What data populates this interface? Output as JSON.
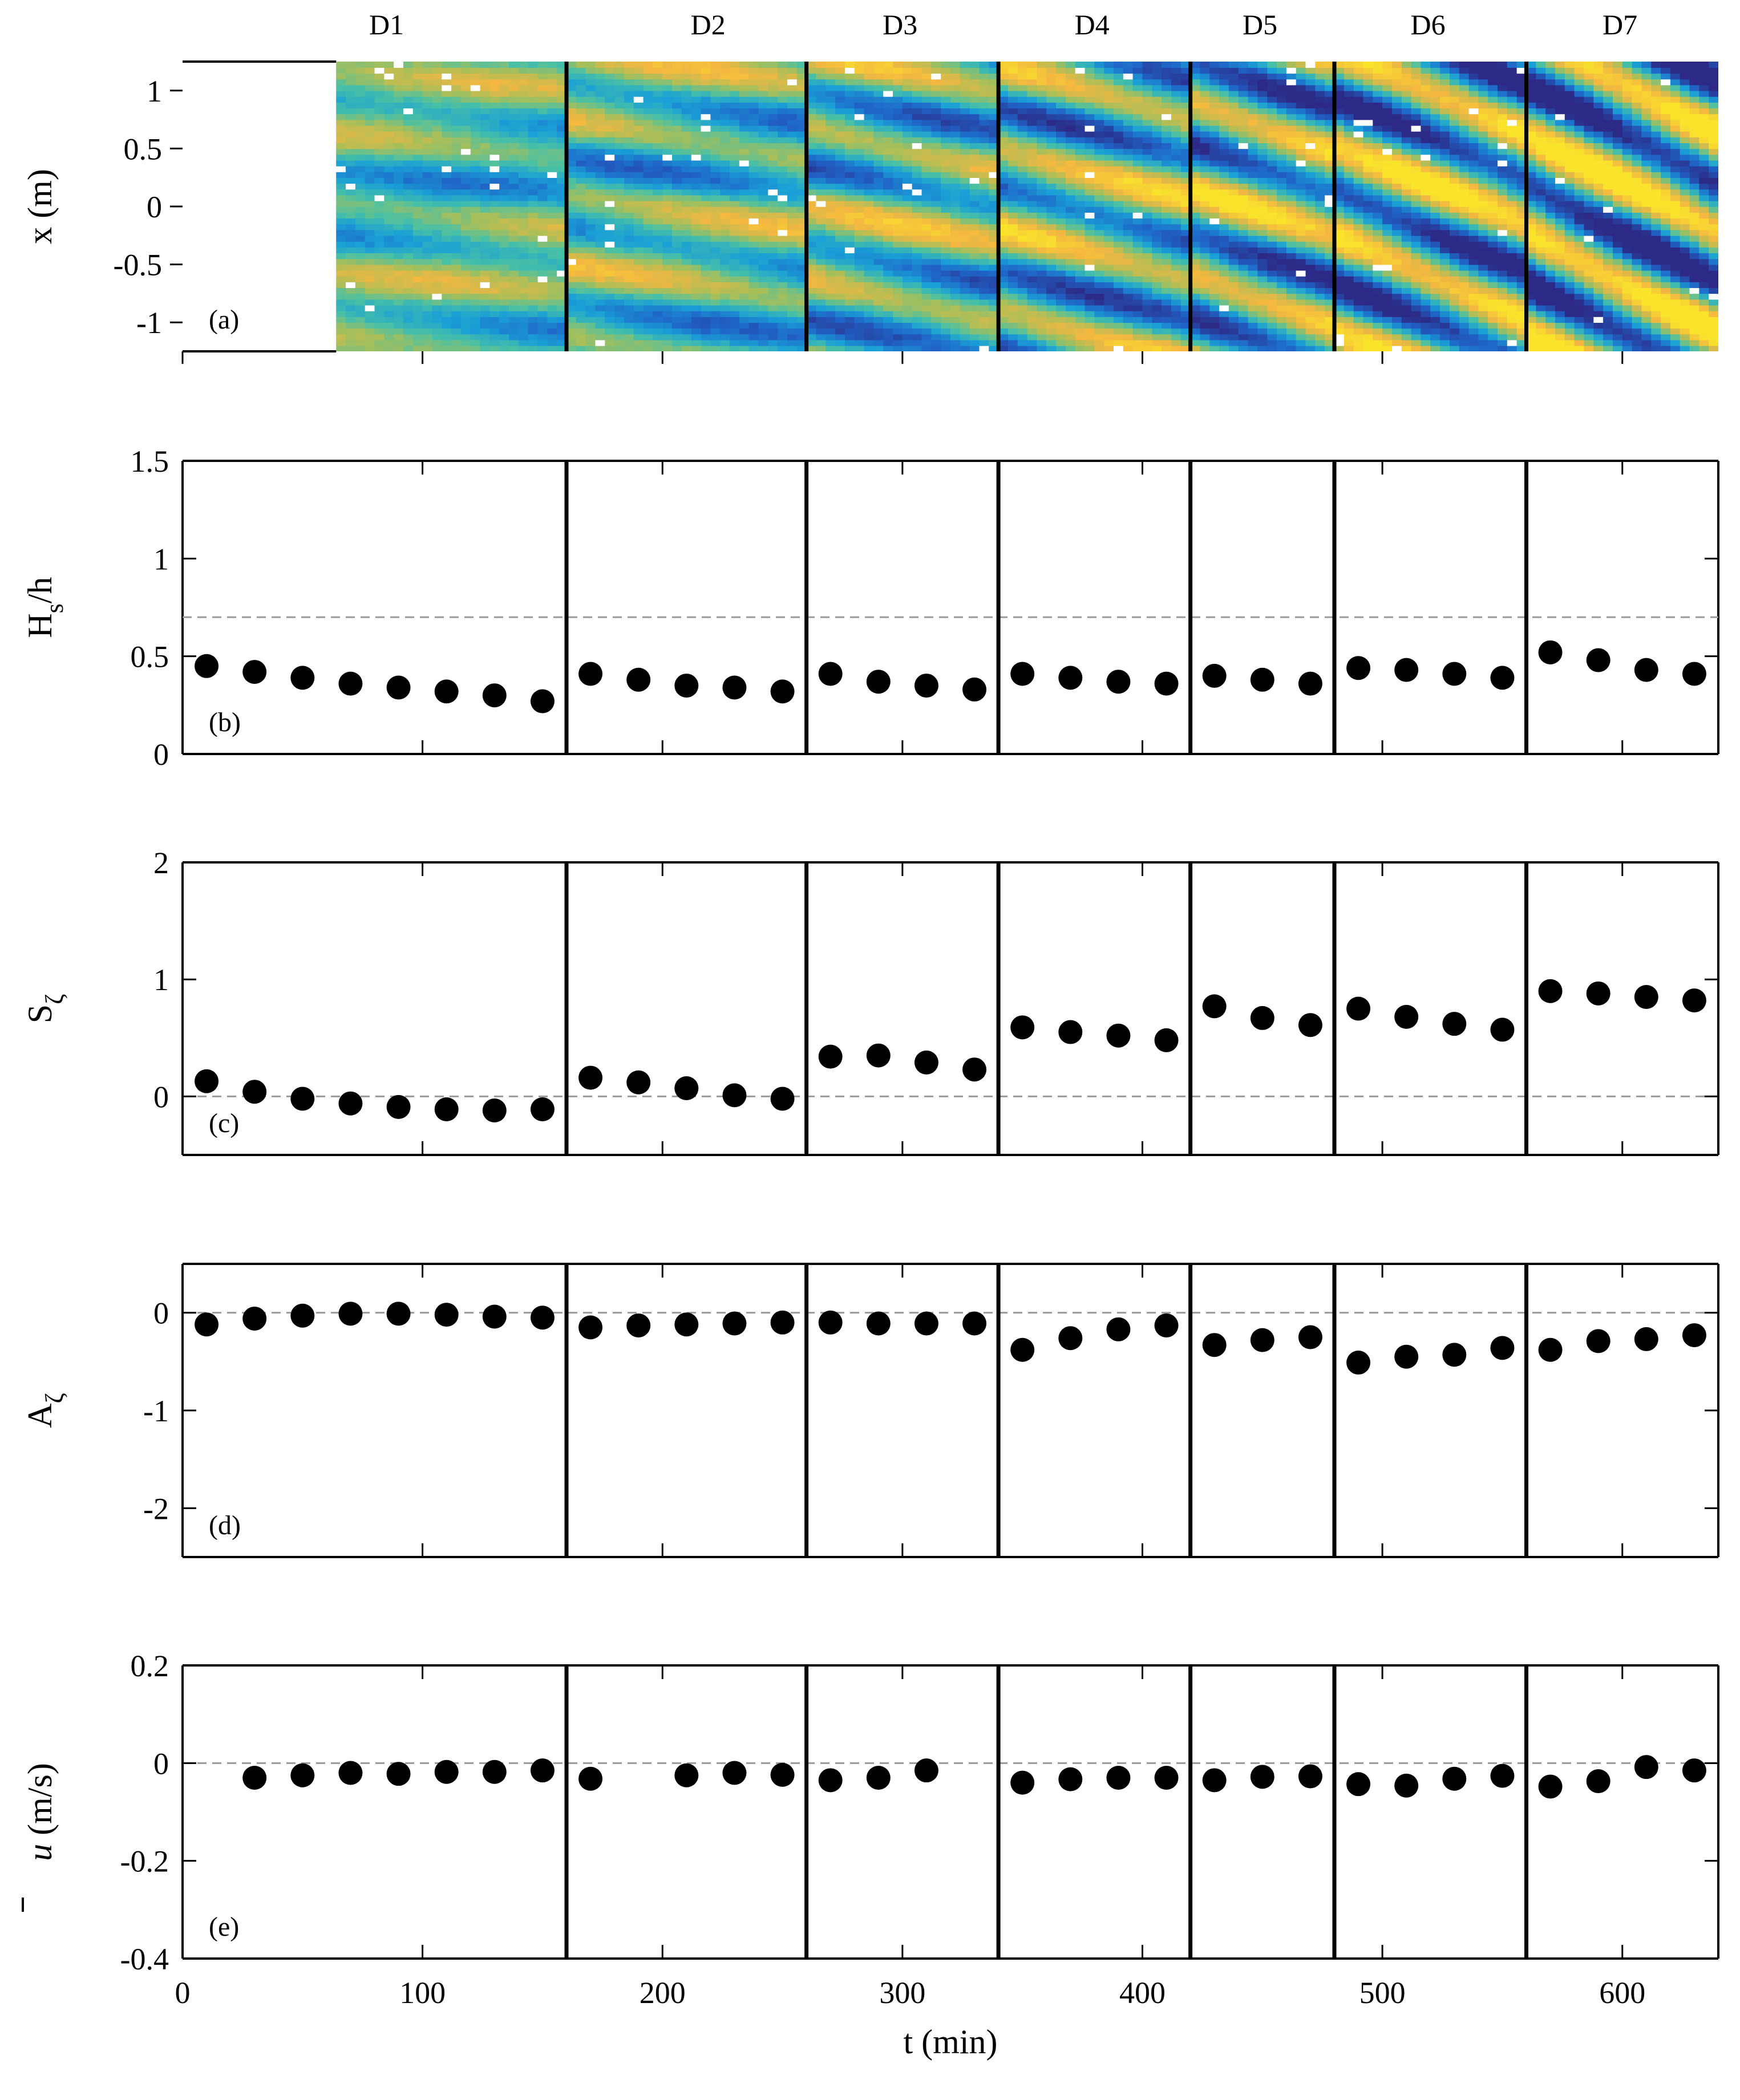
{
  "figure": {
    "x_axis": {
      "label": "t (min)",
      "range": [
        0,
        640
      ],
      "ticks": [
        0,
        100,
        200,
        300,
        400,
        500,
        600
      ],
      "tick_labels": [
        "0",
        "100",
        "200",
        "300",
        "400",
        "500",
        "600"
      ]
    },
    "segment_boundaries": [
      160,
      260,
      340,
      420,
      480,
      560
    ],
    "segments": [
      {
        "label": "D1",
        "x": 85
      },
      {
        "label": "D2",
        "x": 219
      },
      {
        "label": "D3",
        "x": 299
      },
      {
        "label": "D4",
        "x": 379
      },
      {
        "label": "D5",
        "x": 449
      },
      {
        "label": "D6",
        "x": 519
      },
      {
        "label": "D7",
        "x": 599
      }
    ]
  },
  "chart_data": [
    {
      "type": "heatmap",
      "panel_label": "(a)",
      "ylabel": "x (m)",
      "ylim": [
        -1.25,
        1.25
      ],
      "yticks": [
        -1,
        -0.5,
        0,
        0.5,
        1
      ],
      "ytick_labels": [
        "-1",
        "-0.5",
        "0",
        "0.5",
        "1"
      ],
      "data_start": 64,
      "data_end": 640,
      "colormap": [
        "#2c2a86",
        "#1f65c8",
        "#1aa0d6",
        "#48c0a6",
        "#a7bf5a",
        "#f4b741",
        "#f9e42b"
      ]
    },
    {
      "type": "scatter",
      "panel_label": "(b)",
      "ylabel": "H",
      "ylabel_sub": "s",
      "ylabel_tail": "/h",
      "ylim": [
        0,
        1.5
      ],
      "yticks": [
        0,
        0.5,
        1,
        1.5
      ],
      "ytick_labels": [
        "0",
        "0.5",
        "1",
        "1.5"
      ],
      "hline": 0.7,
      "x": [
        10,
        30,
        50,
        70,
        90,
        110,
        130,
        150,
        170,
        190,
        210,
        230,
        250,
        270,
        290,
        310,
        330,
        350,
        370,
        390,
        410,
        430,
        450,
        470,
        490,
        510,
        530,
        550,
        570,
        590,
        610,
        630
      ],
      "y": [
        0.45,
        0.42,
        0.39,
        0.36,
        0.34,
        0.32,
        0.3,
        0.27,
        0.41,
        0.38,
        0.35,
        0.34,
        0.32,
        0.41,
        0.37,
        0.35,
        0.33,
        0.41,
        0.39,
        0.37,
        0.36,
        0.4,
        0.38,
        0.36,
        0.44,
        0.43,
        0.41,
        0.39,
        0.52,
        0.48,
        0.43,
        0.41
      ]
    },
    {
      "type": "scatter",
      "panel_label": "(c)",
      "ylabel": "S",
      "ylabel_sub": "ζ",
      "ylabel_tail": "",
      "ylim": [
        -0.5,
        2
      ],
      "yticks": [
        0,
        1,
        2
      ],
      "ytick_labels": [
        "0",
        "1",
        "2"
      ],
      "hline": 0,
      "x": [
        10,
        30,
        50,
        70,
        90,
        110,
        130,
        150,
        170,
        190,
        210,
        230,
        250,
        270,
        290,
        310,
        330,
        350,
        370,
        390,
        410,
        430,
        450,
        470,
        490,
        510,
        530,
        550,
        570,
        590,
        610,
        630
      ],
      "y": [
        0.13,
        0.04,
        -0.02,
        -0.06,
        -0.09,
        -0.11,
        -0.12,
        -0.11,
        0.16,
        0.12,
        0.07,
        0.01,
        -0.02,
        0.34,
        0.35,
        0.29,
        0.23,
        0.59,
        0.55,
        0.52,
        0.48,
        0.77,
        0.67,
        0.61,
        0.75,
        0.68,
        0.62,
        0.57,
        0.9,
        0.88,
        0.85,
        0.82
      ]
    },
    {
      "type": "scatter",
      "panel_label": "(d)",
      "ylabel": "A",
      "ylabel_sub": "ζ",
      "ylabel_tail": "",
      "ylim": [
        -2.5,
        0.5
      ],
      "yticks": [
        -2,
        -1,
        0
      ],
      "ytick_labels": [
        "-2",
        "-1",
        "0"
      ],
      "hline": 0,
      "x": [
        10,
        30,
        50,
        70,
        90,
        110,
        130,
        150,
        170,
        190,
        210,
        230,
        250,
        270,
        290,
        310,
        330,
        350,
        370,
        390,
        410,
        430,
        450,
        470,
        490,
        510,
        530,
        550,
        570,
        590,
        610,
        630
      ],
      "y": [
        -0.12,
        -0.06,
        -0.03,
        -0.01,
        -0.01,
        -0.02,
        -0.04,
        -0.05,
        -0.15,
        -0.13,
        -0.12,
        -0.11,
        -0.1,
        -0.1,
        -0.11,
        -0.11,
        -0.11,
        -0.38,
        -0.26,
        -0.17,
        -0.13,
        -0.33,
        -0.28,
        -0.25,
        -0.51,
        -0.45,
        -0.43,
        -0.36,
        -0.38,
        -0.29,
        -0.27,
        -0.23
      ]
    },
    {
      "type": "scatter",
      "panel_label": "(e)",
      "ylabel": "u",
      "ylabel_sub": "",
      "ylabel_tail": " (m/s)",
      "ylim": [
        -0.4,
        0.2
      ],
      "yticks": [
        -0.4,
        -0.2,
        0,
        0.2
      ],
      "ytick_labels": [
        "-0.4",
        "-0.2",
        "0",
        "0.2"
      ],
      "hline": 0,
      "x": [
        30,
        50,
        70,
        90,
        110,
        130,
        150,
        170,
        210,
        230,
        250,
        270,
        290,
        310,
        350,
        370,
        390,
        410,
        430,
        450,
        470,
        490,
        510,
        530,
        550,
        570,
        590,
        610,
        630
      ],
      "y": [
        -0.03,
        -0.025,
        -0.02,
        -0.022,
        -0.018,
        -0.018,
        -0.015,
        -0.032,
        -0.025,
        -0.02,
        -0.024,
        -0.035,
        -0.03,
        -0.015,
        -0.04,
        -0.033,
        -0.03,
        -0.03,
        -0.035,
        -0.028,
        -0.027,
        -0.043,
        -0.046,
        -0.032,
        -0.026,
        -0.048,
        -0.037,
        -0.008,
        -0.015
      ]
    }
  ]
}
